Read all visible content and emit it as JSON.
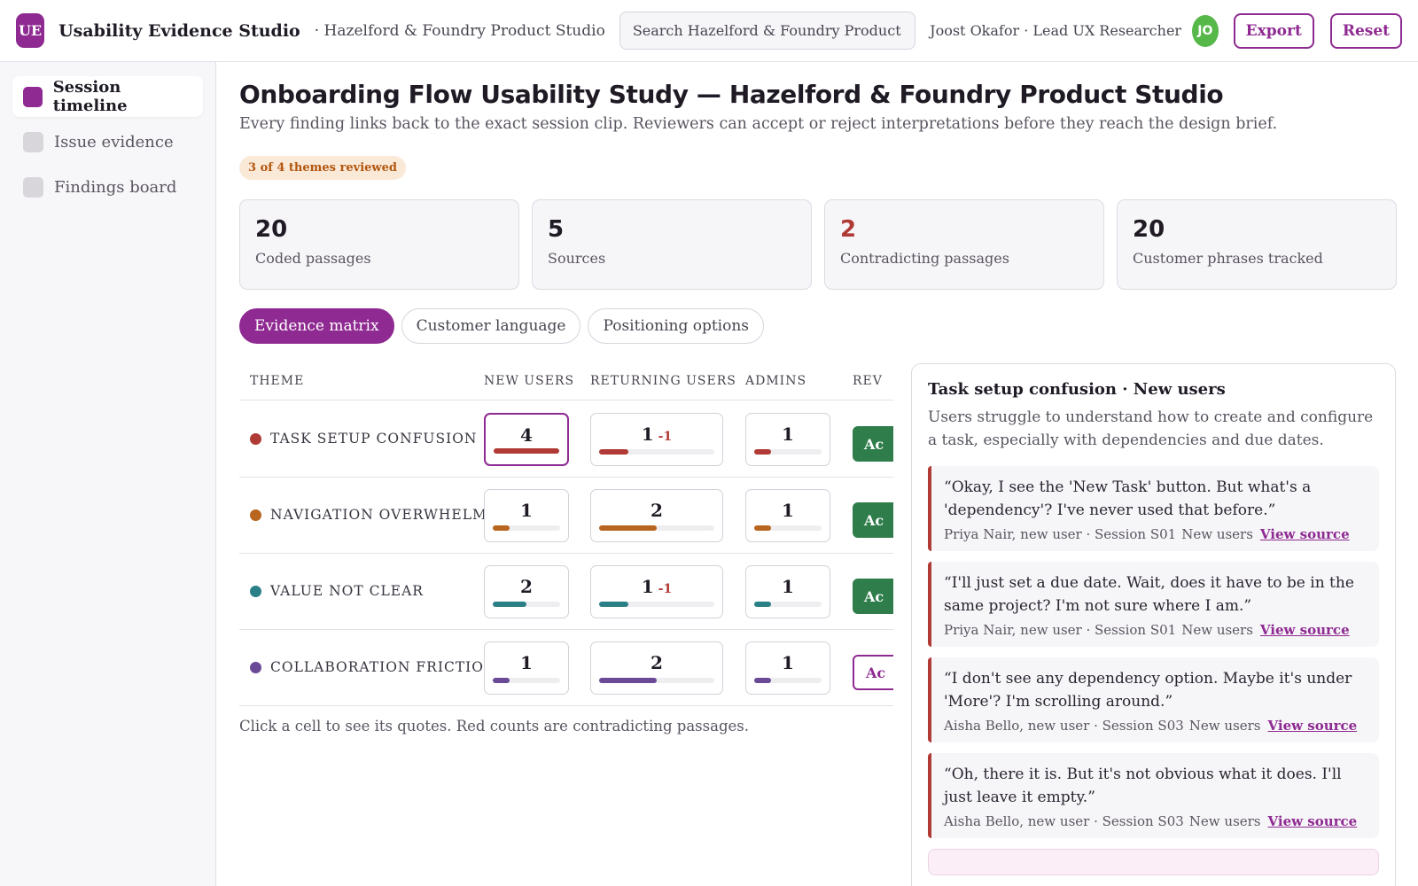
{
  "header": {
    "logo": "UE",
    "app_title": "Usability Evidence Studio",
    "org": "· Hazelford & Foundry Product Studio",
    "search_placeholder": "Search Hazelford & Foundry Product Studio...",
    "user": "Joost Okafor · Lead UX Researcher",
    "avatar_initials": "JO",
    "export_label": "Export",
    "reset_label": "Reset"
  },
  "sidebar": {
    "items": [
      {
        "label": "Session timeline",
        "active": true
      },
      {
        "label": "Issue evidence",
        "active": false
      },
      {
        "label": "Findings board",
        "active": false
      }
    ]
  },
  "main": {
    "title": "Onboarding Flow Usability Study — Hazelford & Foundry Product Studio",
    "subtitle": "Every finding links back to the exact session clip. Reviewers can accept or reject interpretations before they reach the design brief.",
    "review_badge": "3 of 4 themes reviewed",
    "stats": [
      {
        "value": "20",
        "label": "Coded passages"
      },
      {
        "value": "5",
        "label": "Sources"
      },
      {
        "value": "2",
        "label": "Contradicting passages"
      },
      {
        "value": "20",
        "label": "Customer phrases tracked"
      }
    ],
    "tabs": [
      {
        "label": "Evidence matrix",
        "active": true
      },
      {
        "label": "Customer language",
        "active": false
      },
      {
        "label": "Positioning options",
        "active": false
      }
    ],
    "hint": "Click a cell to see its quotes. Red counts are contradicting passages."
  },
  "matrix": {
    "columns": [
      "THEME",
      "NEW USERS",
      "RETURNING USERS",
      "ADMINS",
      "REV"
    ],
    "rows": [
      {
        "theme": "TASK SETUP CONFUSION",
        "color": "#b03a35",
        "cells": [
          {
            "count": "4",
            "contradict": "",
            "fill": 1.0
          },
          {
            "count": "1",
            "contradict": "-1",
            "fill": 0.25
          },
          {
            "count": "1",
            "contradict": "",
            "fill": 0.25
          }
        ],
        "review": "Ac",
        "review_style": "filled"
      },
      {
        "theme": "NAVIGATION OVERWHELM",
        "color": "#b8651f",
        "cells": [
          {
            "count": "1",
            "contradict": "",
            "fill": 0.25
          },
          {
            "count": "2",
            "contradict": "",
            "fill": 0.5
          },
          {
            "count": "1",
            "contradict": "",
            "fill": 0.25
          }
        ],
        "review": "Ac",
        "review_style": "filled"
      },
      {
        "theme": "VALUE NOT CLEAR",
        "color": "#2a8086",
        "cells": [
          {
            "count": "2",
            "contradict": "",
            "fill": 0.5
          },
          {
            "count": "1",
            "contradict": "-1",
            "fill": 0.25
          },
          {
            "count": "1",
            "contradict": "",
            "fill": 0.25
          }
        ],
        "review": "Ac",
        "review_style": "filled"
      },
      {
        "theme": "COLLABORATION FRICTION",
        "color": "#6a4a96",
        "cells": [
          {
            "count": "1",
            "contradict": "",
            "fill": 0.25
          },
          {
            "count": "2",
            "contradict": "",
            "fill": 0.5
          },
          {
            "count": "1",
            "contradict": "",
            "fill": 0.25
          }
        ],
        "review": "Ac",
        "review_style": "outline"
      }
    ]
  },
  "panel": {
    "title": "Task setup confusion · New users",
    "description": "Users struggle to understand how to create and configure a task, especially with dependencies and due dates.",
    "link_label": "View source",
    "quotes": [
      {
        "text": "“Okay, I see the 'New Task' button. But what's a 'dependency'? I've never used that before.”",
        "source": "Priya Nair, new user · Session S01",
        "group": "New users"
      },
      {
        "text": "“I'll just set a due date. Wait, does it have to be in the same project? I'm not sure where I am.”",
        "source": "Priya Nair, new user · Session S01",
        "group": "New users"
      },
      {
        "text": "“I don't see any dependency option. Maybe it's under 'More'? I'm scrolling around.”",
        "source": "Aisha Bello, new user · Session S03",
        "group": "New users"
      },
      {
        "text": "“Oh, there it is. But it's not obvious what it does. I'll just leave it empty.”",
        "source": "Aisha Bello, new user · Session S03",
        "group": "New users"
      }
    ]
  }
}
